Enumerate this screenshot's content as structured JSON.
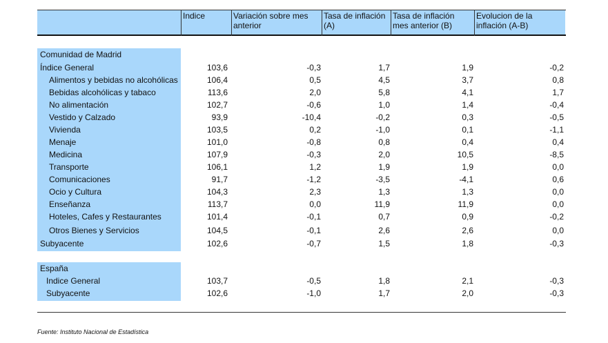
{
  "header": {
    "col1": "Indice",
    "col2_l1": "Variación sobre mes",
    "col2_l2": "anterior",
    "col3_l1": "Tasa de inflación",
    "col3_l2": "(A)",
    "col4_l1": "Tasa de inflación",
    "col4_l2": "mes anterior (B)",
    "col5_l1": "Evolucion de la",
    "col5_l2": "inflación (A-B)"
  },
  "sections": {
    "madrid_title": "Comunidad de Madrid",
    "spain_title": "España"
  },
  "rows": [
    {
      "label": "Índice General",
      "v": [
        "103,6",
        "-0,3",
        "1,7",
        "1,9",
        "-0,2"
      ]
    },
    {
      "label": "Alimentos y bebidas no alcohólicas",
      "v": [
        "106,4",
        "0,5",
        "4,5",
        "3,7",
        "0,8"
      ]
    },
    {
      "label": "Bebidas alcohólicas y tabaco",
      "v": [
        "113,6",
        "2,0",
        "5,8",
        "4,1",
        "1,7"
      ]
    },
    {
      "label": "No alimentación",
      "v": [
        "102,7",
        "-0,6",
        "1,0",
        "1,4",
        "-0,4"
      ]
    },
    {
      "label": "Vestido y Calzado",
      "v": [
        "93,9",
        "-10,4",
        "-0,2",
        "0,3",
        "-0,5"
      ]
    },
    {
      "label": "Vivienda",
      "v": [
        "103,5",
        "0,2",
        "-1,0",
        "0,1",
        "-1,1"
      ]
    },
    {
      "label": "Menaje",
      "v": [
        "101,0",
        "-0,8",
        "0,8",
        "0,4",
        "0,4"
      ]
    },
    {
      "label": "Medicina",
      "v": [
        "107,9",
        "-0,3",
        "2,0",
        "10,5",
        "-8,5"
      ]
    },
    {
      "label": "Transporte",
      "v": [
        "106,1",
        "1,2",
        "1,9",
        "1,9",
        "0,0"
      ]
    },
    {
      "label": "Comunicaciones",
      "v": [
        "91,7",
        "-1,2",
        "-3,5",
        "-4,1",
        "0,6"
      ]
    },
    {
      "label": "Ocio y Cultura",
      "v": [
        "104,3",
        "2,3",
        "1,3",
        "1,3",
        "0,0"
      ]
    },
    {
      "label": "Enseñanza",
      "v": [
        "113,7",
        "0,0",
        "11,9",
        "11,9",
        "0,0"
      ]
    },
    {
      "label": "Hoteles, Cafes y Restaurantes",
      "v": [
        "101,4",
        "-0,1",
        "0,7",
        "0,9",
        "-0,2"
      ]
    },
    {
      "label": "Otros Bienes y Servicios",
      "v": [
        "104,5",
        "-0,1",
        "2,6",
        "2,6",
        "0,0"
      ]
    },
    {
      "label": "Subyacente",
      "v": [
        "102,6",
        "-0,7",
        "1,5",
        "1,8",
        "-0,3"
      ]
    },
    {
      "label": "Indice General",
      "v": [
        "103,7",
        "-0,5",
        "1,8",
        "2,1",
        "-0,3"
      ]
    },
    {
      "label": "Subyacente",
      "v": [
        "102,6",
        "-1,0",
        "1,7",
        "2,0",
        "-0,3"
      ]
    }
  ],
  "footer": {
    "source": "Fuente: Instituto Nacional de Estadística"
  },
  "colors": {
    "header_fill": "#a9d7fb",
    "label_fill": "#a9d7fb"
  }
}
